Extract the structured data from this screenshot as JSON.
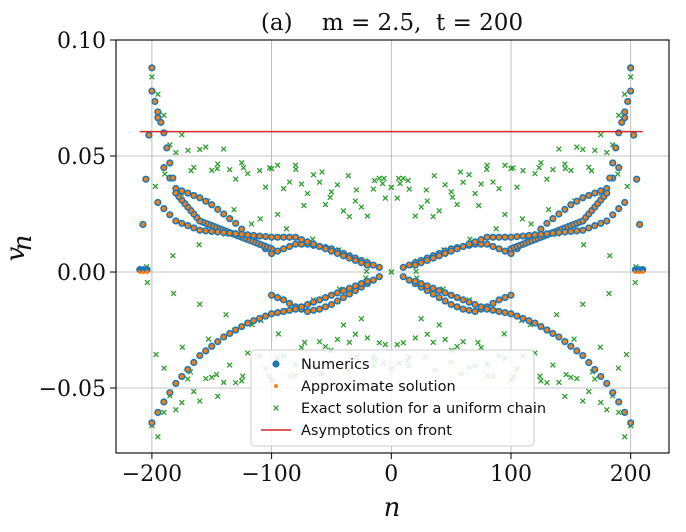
{
  "chart_data": {
    "type": "scatter",
    "title": "(a)    m = 2.5,  t = 200",
    "xlabel": "n",
    "ylabel": "v_n",
    "xlim": [
      -230,
      232
    ],
    "ylim": [
      -0.078,
      0.1
    ],
    "xticks": [
      -200,
      -100,
      0,
      100,
      200
    ],
    "xtick_labels": [
      "−200",
      "−100",
      "0",
      "100",
      "200"
    ],
    "yticks": [
      -0.05,
      0.0,
      0.05,
      0.1
    ],
    "ytick_labels": [
      "−0.05",
      "0.00",
      "0.05",
      "0.10"
    ],
    "grid": true,
    "legend_position": "lower-center",
    "series": [
      {
        "name": "Numerics",
        "marker": "circle",
        "color": "#1f77b4"
      },
      {
        "name": "Approximate solution",
        "marker": "small-circle",
        "color": "#ff7f0e"
      },
      {
        "name": "Exact solution for a uniform chain",
        "marker": "x",
        "color": "#2ca02c"
      },
      {
        "name": "Asymptotics on front",
        "marker": "line",
        "color": "#d62728",
        "x": [
          -210,
          210
        ],
        "y": [
          0.0605,
          0.0605
        ]
      }
    ],
    "branches_numerics": [
      {
        "x": [
          10,
          20,
          30,
          40,
          50,
          60,
          70,
          80,
          90,
          100
        ],
        "y": [
          0.002,
          0.004,
          0.006,
          0.008,
          0.01,
          0.011,
          0.012,
          0.012,
          0.01,
          0.008
        ]
      },
      {
        "x": [
          10,
          20,
          30,
          40,
          50,
          60,
          70,
          80,
          90,
          100
        ],
        "y": [
          -0.002,
          -0.005,
          -0.008,
          -0.011,
          -0.014,
          -0.016,
          -0.017,
          -0.015,
          -0.012,
          -0.01
        ]
      },
      {
        "x": [
          100,
          110,
          120,
          130,
          140,
          150,
          160,
          170,
          180,
          190,
          200
        ],
        "y": [
          0.008,
          0.012,
          0.016,
          0.021,
          0.025,
          0.029,
          0.032,
          0.034,
          0.036,
          0.045,
          0.088
        ]
      },
      {
        "x": [
          20,
          40,
          60,
          80,
          100,
          120,
          140,
          160,
          180,
          190,
          200
        ],
        "y": [
          -0.004,
          -0.008,
          -0.012,
          -0.016,
          -0.018,
          -0.022,
          -0.028,
          -0.036,
          -0.048,
          -0.056,
          -0.065
        ]
      },
      {
        "x": [
          100,
          120,
          140,
          160,
          180,
          190,
          200,
          205,
          210
        ],
        "y": [
          0.01,
          0.014,
          0.018,
          0.022,
          0.034,
          0.06,
          0.078,
          0.04,
          0.001
        ]
      },
      {
        "x": [
          20,
          40,
          60,
          80,
          100,
          120,
          140,
          160,
          180,
          195
        ],
        "y": [
          0.003,
          0.007,
          0.011,
          0.015,
          0.015,
          0.016,
          0.017,
          0.018,
          0.022,
          0.03
        ]
      }
    ],
    "exact_samples": [
      {
        "x": [
          120,
          130,
          140,
          150,
          160,
          170,
          180,
          190,
          200
        ],
        "y": [
          0.04,
          0.045,
          0.047,
          0.049,
          0.05,
          0.052,
          0.055,
          0.062,
          0.09
        ]
      },
      {
        "x": [
          120,
          130,
          140,
          150,
          160,
          170,
          180,
          190,
          200
        ],
        "y": [
          -0.04,
          -0.045,
          -0.047,
          -0.049,
          -0.05,
          -0.052,
          -0.055,
          -0.062,
          -0.068
        ]
      },
      {
        "x": [
          0,
          10,
          20,
          30,
          40,
          50,
          60,
          70,
          80,
          90,
          100,
          110
        ],
        "y": [
          0.038,
          0.036,
          0.03,
          0.025,
          0.03,
          0.034,
          0.036,
          0.039,
          0.04,
          0.041,
          0.042,
          0.043
        ]
      },
      {
        "x": [
          0,
          10,
          20,
          30,
          40,
          50,
          60,
          70,
          80,
          90,
          100,
          110
        ],
        "y": [
          -0.036,
          -0.034,
          -0.028,
          -0.024,
          -0.028,
          -0.033,
          -0.035,
          -0.038,
          -0.039,
          -0.04,
          -0.041,
          -0.042
        ]
      }
    ]
  }
}
